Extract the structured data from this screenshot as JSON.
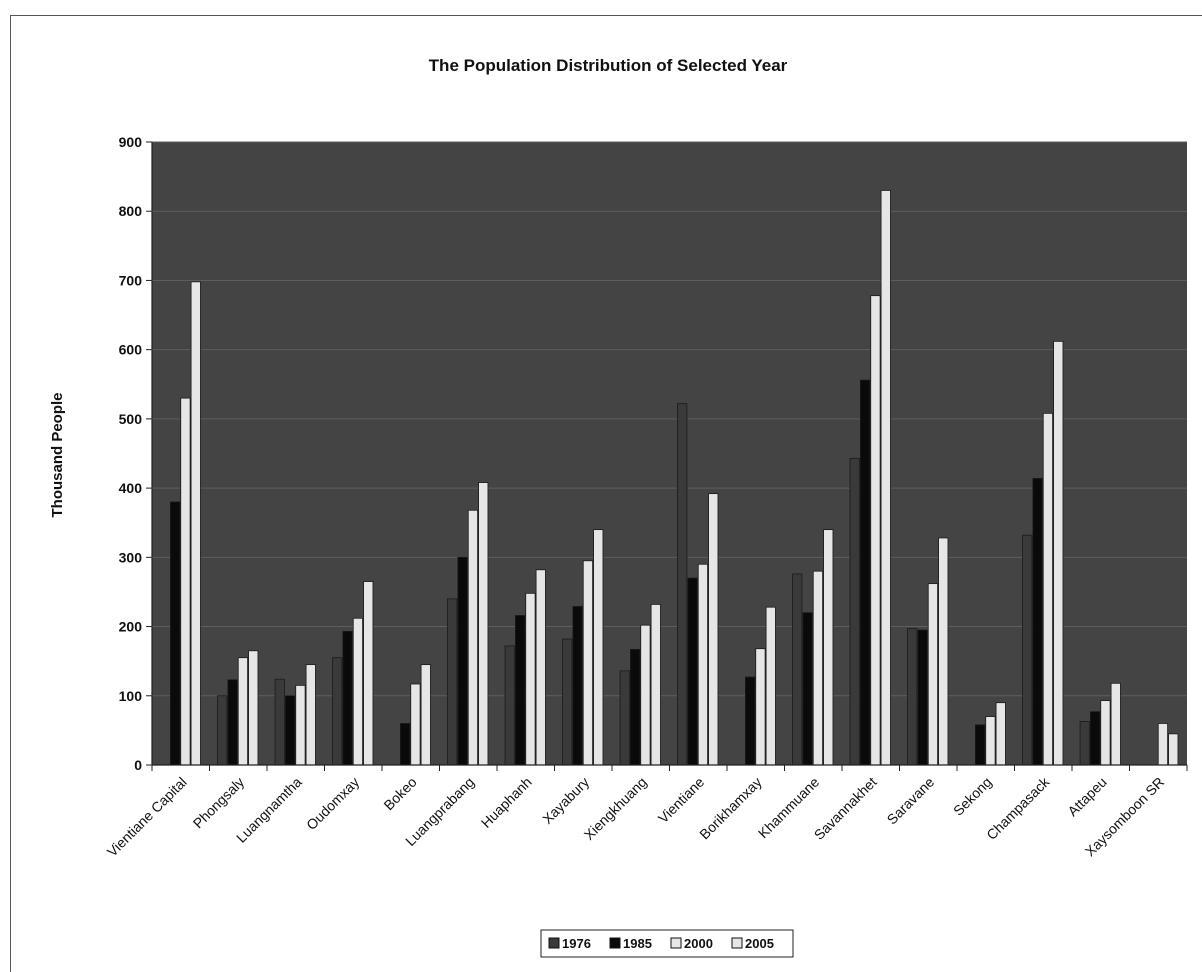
{
  "chart_data": {
    "type": "bar",
    "title": "The Population Distribution of Selected Year",
    "xlabel": "",
    "ylabel": "Thousand People",
    "ylim": [
      0,
      900
    ],
    "yticks": [
      0,
      100,
      200,
      300,
      400,
      500,
      600,
      700,
      800,
      900
    ],
    "grid": true,
    "legend_position": "bottom",
    "categories": [
      "Vientiane Capital",
      "Phongsaly",
      "Luangnamtha",
      "Oudomxay",
      "Bokeo",
      "Luangprabang",
      "Huaphanh",
      "Xayabury",
      "Xiengkhuang",
      "Vientiane",
      "Borikhamxay",
      "Khammuane",
      "Savannakhet",
      "Saravane",
      "Sekong",
      "Champasack",
      "Attapeu",
      "Xaysomboon SR"
    ],
    "series": [
      {
        "name": "1976",
        "color": "#3a3a3a",
        "values": [
          null,
          100,
          124,
          155,
          null,
          240,
          172,
          182,
          136,
          522,
          null,
          276,
          443,
          197,
          null,
          332,
          63,
          null
        ]
      },
      {
        "name": "1985",
        "color": "#0a0a0a",
        "values": [
          380,
          123,
          100,
          193,
          60,
          300,
          216,
          229,
          167,
          270,
          127,
          220,
          556,
          195,
          58,
          414,
          77,
          null
        ]
      },
      {
        "name": "2000",
        "color": "#e6e6e6",
        "values": [
          530,
          155,
          115,
          212,
          117,
          368,
          248,
          295,
          202,
          290,
          168,
          280,
          678,
          262,
          70,
          508,
          93,
          60
        ]
      },
      {
        "name": "2005",
        "color": "#e6e6e6",
        "values": [
          698,
          165,
          145,
          265,
          145,
          408,
          282,
          340,
          232,
          392,
          228,
          340,
          830,
          328,
          90,
          612,
          118,
          45
        ]
      }
    ]
  }
}
